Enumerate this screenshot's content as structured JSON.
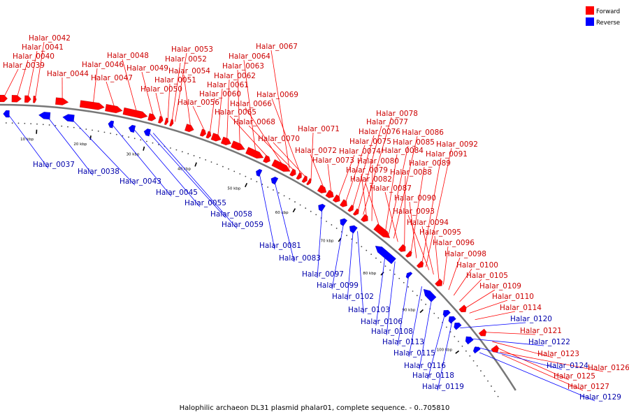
{
  "caption": "Halophilic archaeon DL31 plasmid phalar01, complete sequence. - 0..705810",
  "legend": [
    {
      "label": "Forward",
      "color": "#ff0000"
    },
    {
      "label": "Reverse",
      "color": "#0000ff"
    }
  ],
  "colors": {
    "forward": "#ff0000",
    "reverse": "#0000ff",
    "forward_text": "#cc0000",
    "reverse_text": "#0000aa",
    "backbone": "#777777"
  },
  "scale_labels": [
    "10 kbp",
    "20 kbp",
    "30 kbp",
    "40 kbp",
    "50 kbp",
    "60 kbp",
    "70 kbp",
    "80 kbp",
    "90 kbp",
    "100 kbp"
  ],
  "forward_labels": [
    "Halar_0039",
    "Halar_0040",
    "Halar_0041",
    "Halar_0042",
    "Halar_0044",
    "Halar_0046",
    "Halar_0047",
    "Halar_0048",
    "Halar_0049",
    "Halar_0050",
    "Halar_0051",
    "Halar_0052",
    "Halar_0053",
    "Halar_0054",
    "Halar_0056",
    "Halar_0060",
    "Halar_0061",
    "Halar_0062",
    "Halar_0063",
    "Halar_0064",
    "Halar_0065",
    "Halar_0066",
    "Halar_0067",
    "Halar_0068",
    "Halar_0069",
    "Halar_0070",
    "Halar_0071",
    "Halar_0072",
    "Halar_0073",
    "Halar_0074",
    "Halar_0075",
    "Halar_0076",
    "Halar_0077",
    "Halar_0078",
    "Halar_0079",
    "Halar_0080",
    "Halar_0082",
    "Halar_0084",
    "Halar_0085",
    "Halar_0086",
    "Halar_0087",
    "Halar_0088",
    "Halar_0089",
    "Halar_0090",
    "Halar_0091",
    "Halar_0092",
    "Halar_0093",
    "Halar_0094",
    "Halar_0095",
    "Halar_0096",
    "Halar_0098",
    "Halar_0100",
    "Halar_0105",
    "Halar_0109",
    "Halar_0110",
    "Halar_0114",
    "Halar_0121",
    "Halar_0123",
    "Halar_0125",
    "Halar_0126",
    "Halar_0127"
  ],
  "reverse_labels": [
    "Halar_0037",
    "Halar_0038",
    "Halar_0043",
    "Halar_0045",
    "Halar_0055",
    "Halar_0058",
    "Halar_0059",
    "Halar_0081",
    "Halar_0083",
    "Halar_0097",
    "Halar_0099",
    "Halar_0102",
    "Halar_0103",
    "Halar_0106",
    "Halar_0108",
    "Halar_0113",
    "Halar_0115",
    "Halar_0116",
    "Halar_0118",
    "Halar_0119",
    "Halar_0120",
    "Halar_0122",
    "Halar_0124",
    "Halar_0129"
  ]
}
